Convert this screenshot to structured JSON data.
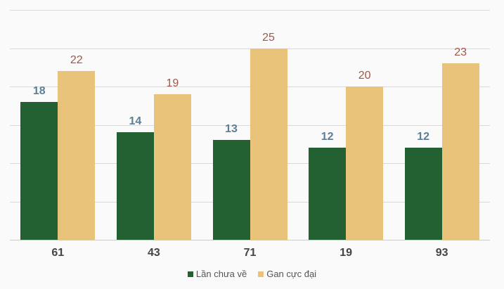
{
  "chart_data": {
    "type": "bar",
    "title": "",
    "xlabel": "",
    "ylabel": "",
    "categories": [
      "61",
      "43",
      "71",
      "19",
      "93"
    ],
    "series": [
      {
        "name": "Lần chưa về",
        "values": [
          18,
          14,
          13,
          12,
          12
        ],
        "color": "#246132",
        "label_color": "#5b7f95"
      },
      {
        "name": "Gan cực đại",
        "values": [
          22,
          19,
          25,
          20,
          23
        ],
        "color": "#e8c379",
        "label_color": "#a0574a"
      }
    ],
    "ylim": [
      0,
      30
    ],
    "y_gridlines": [
      0,
      5,
      10,
      15,
      20,
      25,
      30
    ],
    "grid": true,
    "y_tick_labels_visible": false,
    "legend_position": "bottom"
  },
  "legend": {
    "items": [
      {
        "label": "Lần chưa về",
        "color": "#246132"
      },
      {
        "label": "Gan cực đại",
        "color": "#e8c379"
      }
    ]
  }
}
